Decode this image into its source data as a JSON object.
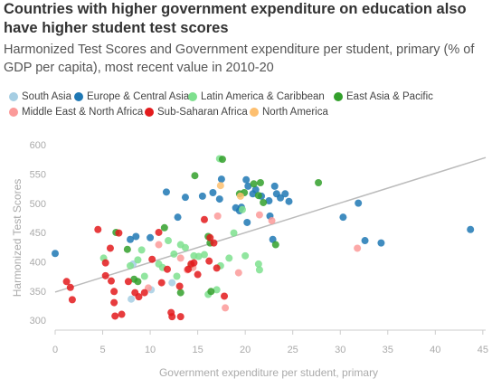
{
  "chart_data": {
    "type": "scatter",
    "title": "Countries with higher government expenditure on education also have higher student test scores",
    "subtitle": "Harmonized Test Scores and Government expenditure per student, primary (% of GDP per capita), most recent value in 2010-20",
    "x_label": "Government expenditure per student, primary",
    "y_label": "Harmonized Test Scores",
    "xlim": [
      0,
      45.3
    ],
    "ylim": [
      285,
      605
    ],
    "xticks": [
      0,
      5,
      10,
      15,
      20,
      25,
      30,
      35,
      40,
      45
    ],
    "yticks": [
      300,
      350,
      400,
      450,
      500,
      550,
      600
    ],
    "grid": false,
    "trendline": {
      "color": "#bbbbbb",
      "x": [
        0,
        45.3
      ],
      "y": [
        350,
        580
      ]
    },
    "series": [
      {
        "name": "South Asia",
        "color": "#a6cee3",
        "x": [
          8.2,
          8,
          12.3,
          10.1
        ],
        "y": [
          398,
          338,
          366,
          354
        ]
      },
      {
        "name": "Europe & Central Asia",
        "color": "#1f78b4",
        "x": [
          0,
          11.7,
          13.7,
          12.9,
          15.5,
          16.6,
          17.3,
          17.5,
          19,
          19.4,
          19.6,
          20.1,
          20.3,
          20.8,
          21.1,
          21.7,
          22.5,
          23.1,
          23.3,
          23.7,
          24.2,
          24.6,
          20.2,
          22.6,
          22.9,
          30.3,
          31.9,
          32.6,
          34.3,
          43.7,
          8.5,
          10,
          7.9
        ],
        "y": [
          416,
          521,
          512,
          478,
          514,
          520,
          509,
          543,
          494,
          489,
          495,
          542,
          531,
          518,
          525,
          514,
          506,
          531,
          518,
          511,
          518,
          505,
          469,
          480,
          440,
          478,
          502,
          438,
          434,
          457,
          445,
          443,
          440
        ]
      },
      {
        "name": "Latin America & Caribbean",
        "color": "#7ee08e",
        "x": [
          5.1,
          7.9,
          8.7,
          9.1,
          9.4,
          10.9,
          11.3,
          11.9,
          12.5,
          12.8,
          13.2,
          13.7,
          14.3,
          14.6,
          15.1,
          15.7,
          16.1,
          17,
          17.4,
          18.3,
          20,
          21.4,
          21.5,
          18.8,
          17.3,
          19.7
        ],
        "y": [
          408,
          395,
          405,
          422,
          377,
          398,
          392,
          438,
          415,
          377,
          431,
          426,
          395,
          412,
          411,
          414,
          346,
          354,
          395,
          408,
          412,
          398,
          388,
          451,
          578,
          491
        ]
      },
      {
        "name": "East Asia & Pacific",
        "color": "#33a02c",
        "x": [
          6.4,
          7.6,
          8.3,
          8.7,
          11.5,
          14.7,
          16.1,
          16.3,
          16.4,
          13.2,
          19.4,
          19.9,
          20.9,
          21.6,
          21.4,
          21.9,
          23.2,
          27.7,
          17.6
        ],
        "y": [
          452,
          423,
          372,
          368,
          460,
          549,
          445,
          434,
          351,
          349,
          518,
          520,
          535,
          537,
          515,
          503,
          431,
          537,
          577
        ]
      },
      {
        "name": "Middle East & North Africa",
        "color": "#fb9a99",
        "x": [
          10.9,
          13.2,
          13.9,
          14.5,
          21.5,
          22.8,
          17.9,
          19.3,
          31.8,
          9.8,
          17.1
        ],
        "y": [
          431,
          408,
          388,
          392,
          482,
          472,
          323,
          383,
          425,
          357,
          480
        ]
      },
      {
        "name": "Sub-Saharan Africa",
        "color": "#e31a1c",
        "x": [
          1.2,
          1.6,
          1.8,
          4.5,
          5.3,
          5.3,
          5.9,
          6.2,
          6.2,
          6.3,
          7,
          6.7,
          7.7,
          8.4,
          8.8,
          9.4,
          10.2,
          10.9,
          11.2,
          11.8,
          12.2,
          12.3,
          13.2,
          14,
          14.3,
          14.6,
          15,
          15.7,
          16.2,
          16.7,
          17,
          17.8,
          16.3,
          13.1,
          5.8
        ],
        "y": [
          368,
          358,
          337,
          457,
          400,
          378,
          369,
          351,
          332,
          309,
          312,
          451,
          368,
          349,
          342,
          349,
          406,
          452,
          366,
          389,
          315,
          308,
          308,
          389,
          398,
          400,
          380,
          474,
          403,
          434,
          391,
          343,
          443,
          360,
          425
        ]
      },
      {
        "name": "North America",
        "color": "#fdbf6f",
        "x": [
          17.4,
          19.5
        ],
        "y": [
          532,
          514
        ]
      }
    ]
  }
}
